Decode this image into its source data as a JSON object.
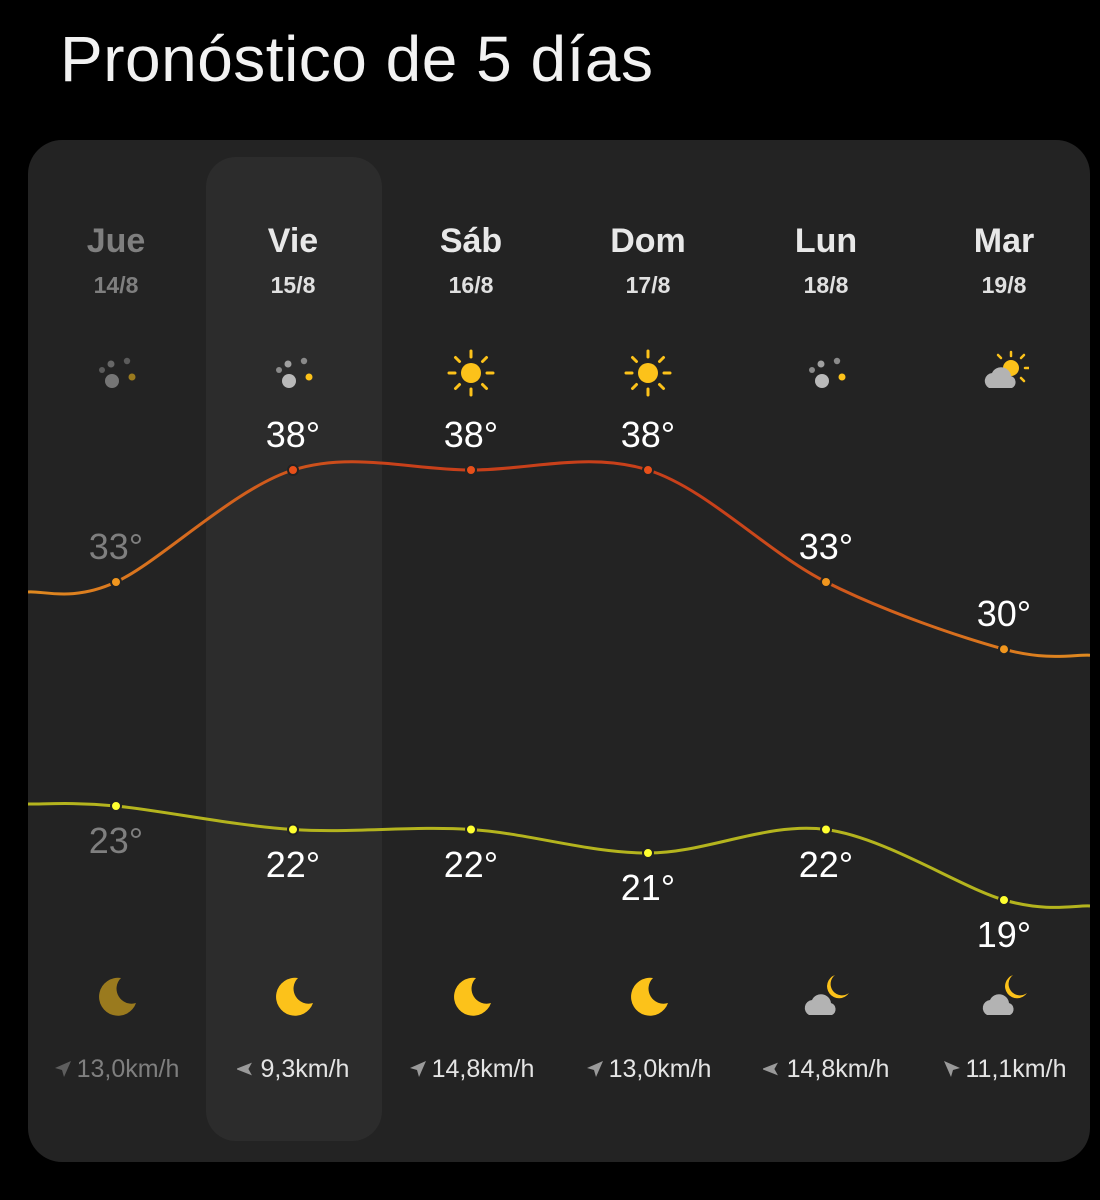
{
  "title": "Pronóstico de 5 días",
  "colors": {
    "background": "#000000",
    "card": "#232323",
    "highlight": "#2c2c2c",
    "high_line_start": "#e08a20",
    "high_line_end": "#c8401a",
    "low_line": "#b4b41e",
    "low_point": "#ffff30",
    "sun": "#fcc21a"
  },
  "days": [
    {
      "name": "Jue",
      "date": "14/8",
      "high": "33°",
      "low": "23°",
      "high_value": 33,
      "low_value": 23,
      "day_icon": "scattered-dots-icon",
      "night_icon": "moon-icon",
      "wind": "13,0km/h",
      "wind_direction": "northeast",
      "past": true,
      "selected": false
    },
    {
      "name": "Vie",
      "date": "15/8",
      "high": "38°",
      "low": "22°",
      "high_value": 38,
      "low_value": 22,
      "day_icon": "scattered-dots-icon",
      "night_icon": "moon-icon",
      "wind": "9,3km/h",
      "wind_direction": "west",
      "past": false,
      "selected": true
    },
    {
      "name": "Sáb",
      "date": "16/8",
      "high": "38°",
      "low": "22°",
      "high_value": 38,
      "low_value": 22,
      "day_icon": "sun-icon",
      "night_icon": "moon-icon",
      "wind": "14,8km/h",
      "wind_direction": "northeast",
      "past": false,
      "selected": false
    },
    {
      "name": "Dom",
      "date": "17/8",
      "high": "38°",
      "low": "21°",
      "high_value": 38,
      "low_value": 21,
      "day_icon": "sun-icon",
      "night_icon": "moon-icon",
      "wind": "13,0km/h",
      "wind_direction": "northeast",
      "past": false,
      "selected": false
    },
    {
      "name": "Lun",
      "date": "18/8",
      "high": "33°",
      "low": "22°",
      "high_value": 33,
      "low_value": 22,
      "day_icon": "scattered-dots-icon",
      "night_icon": "cloudy-moon-icon",
      "wind": "14,8km/h",
      "wind_direction": "west",
      "past": false,
      "selected": false
    },
    {
      "name": "Mar",
      "date": "19/8",
      "high": "30°",
      "low": "19°",
      "high_value": 30,
      "low_value": 19,
      "day_icon": "partly-sunny-icon",
      "night_icon": "cloudy-moon-icon",
      "wind": "11,1km/h",
      "wind_direction": "northwest",
      "past": false,
      "selected": false
    }
  ]
}
